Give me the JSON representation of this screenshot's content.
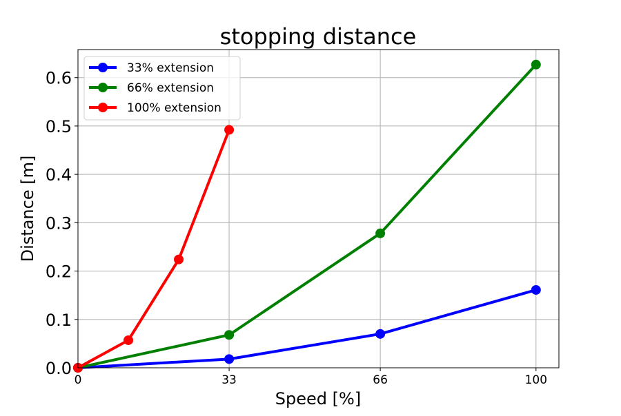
{
  "chart_data": {
    "type": "line",
    "title": "stopping distance",
    "xlabel": "Speed [%]",
    "ylabel": "Distance [m]",
    "xlim": [
      0,
      105
    ],
    "ylim": [
      0,
      0.658
    ],
    "xticks": [
      0,
      33,
      66,
      100
    ],
    "xtick_labels": [
      "0",
      "33",
      "66",
      "100"
    ],
    "yticks": [
      0.0,
      0.1,
      0.2,
      0.3,
      0.4,
      0.5,
      0.6
    ],
    "ytick_labels": [
      "0.0",
      "0.1",
      "0.2",
      "0.3",
      "0.4",
      "0.5",
      "0.6"
    ],
    "grid": true,
    "legend_position": "top-left",
    "series": [
      {
        "name": "33% extension",
        "color": "#0000ff",
        "x": [
          0,
          33,
          66,
          100
        ],
        "y": [
          0.0,
          0.018,
          0.07,
          0.161
        ]
      },
      {
        "name": "66% extension",
        "color": "#008000",
        "x": [
          0,
          33,
          66,
          100
        ],
        "y": [
          0.0,
          0.068,
          0.278,
          0.627
        ]
      },
      {
        "name": "100% extension",
        "color": "#ff0000",
        "x": [
          0,
          11,
          22,
          33
        ],
        "y": [
          0.0,
          0.057,
          0.224,
          0.492
        ]
      }
    ]
  }
}
